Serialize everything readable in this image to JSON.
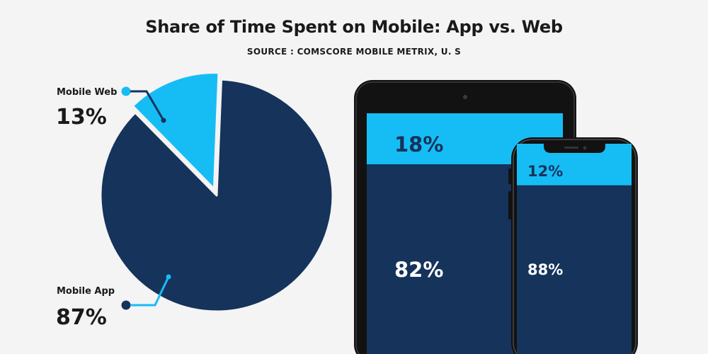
{
  "header": {
    "title": "Share of Time Spent on Mobile: App vs. Web",
    "subtitle": "SOURCE : COMSCORE MOBILE METRIX, U. S"
  },
  "colors": {
    "app": "#15335b",
    "web": "#16bdf5",
    "background": "#f4f4f4",
    "device_frame": "#121212"
  },
  "chart_data": [
    {
      "type": "pie",
      "categories": [
        "Mobile Web",
        "Mobile App"
      ],
      "values": [
        13,
        87
      ],
      "labels": [
        "13%",
        "87%"
      ],
      "colors": [
        "#16bdf5",
        "#15335b"
      ]
    },
    {
      "type": "bar",
      "device": "tablet-icon",
      "categories": [
        "Mobile Web",
        "Mobile App"
      ],
      "values": [
        18,
        82
      ],
      "labels": [
        "18%",
        "82%"
      ]
    },
    {
      "type": "bar",
      "device": "smartphone-icon",
      "categories": [
        "Mobile Web",
        "Mobile App"
      ],
      "values": [
        12,
        88
      ],
      "labels": [
        "12%",
        "88%"
      ]
    }
  ]
}
